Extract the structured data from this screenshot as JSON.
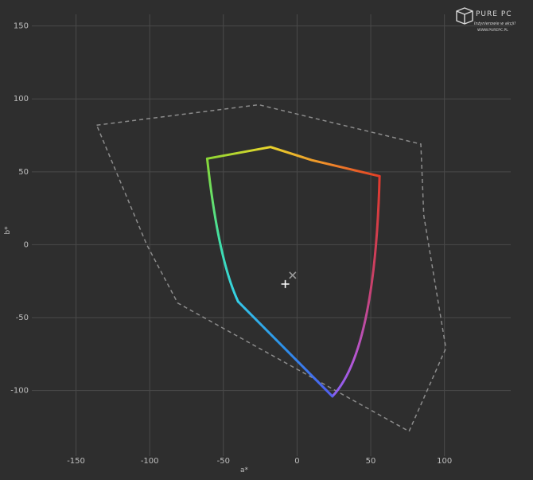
{
  "chart_data": {
    "type": "line",
    "title": "",
    "xlabel": "a*",
    "ylabel": "b*",
    "xlim": [
      -180,
      145
    ],
    "ylim": [
      -145,
      158
    ],
    "xticks": [
      -150,
      -100,
      -50,
      0,
      50,
      100
    ],
    "yticks": [
      150,
      100,
      50,
      0,
      -50,
      -100
    ],
    "grid": true,
    "series": [
      {
        "style": "dashed-gray",
        "points": [
          [
            -136,
            82
          ],
          [
            -26,
            96
          ],
          [
            84,
            69
          ],
          [
            86,
            20
          ],
          [
            101,
            -71
          ],
          [
            76,
            -128
          ],
          [
            -81,
            -40
          ],
          [
            -102,
            0
          ],
          [
            -136,
            82
          ]
        ]
      },
      {
        "style": "gradient-solid",
        "points": [
          [
            -61,
            59
          ],
          [
            -18,
            67
          ],
          [
            10,
            58
          ],
          [
            56,
            47
          ],
          [
            53,
            -73
          ],
          [
            24,
            -104
          ],
          [
            -40,
            -39
          ],
          [
            -52,
            0
          ],
          [
            -61,
            59
          ]
        ]
      }
    ],
    "markers": [
      {
        "symbol": "+",
        "x": -8,
        "y": -27,
        "color": "#ffffff"
      },
      {
        "symbol": "×",
        "x": -3,
        "y": -21,
        "color": "#9a9a9a"
      }
    ]
  },
  "logo": {
    "text": "PURE PC",
    "tagline": "Inżynierowie w akcji!",
    "url": "WWW.PUREPC.PL"
  }
}
